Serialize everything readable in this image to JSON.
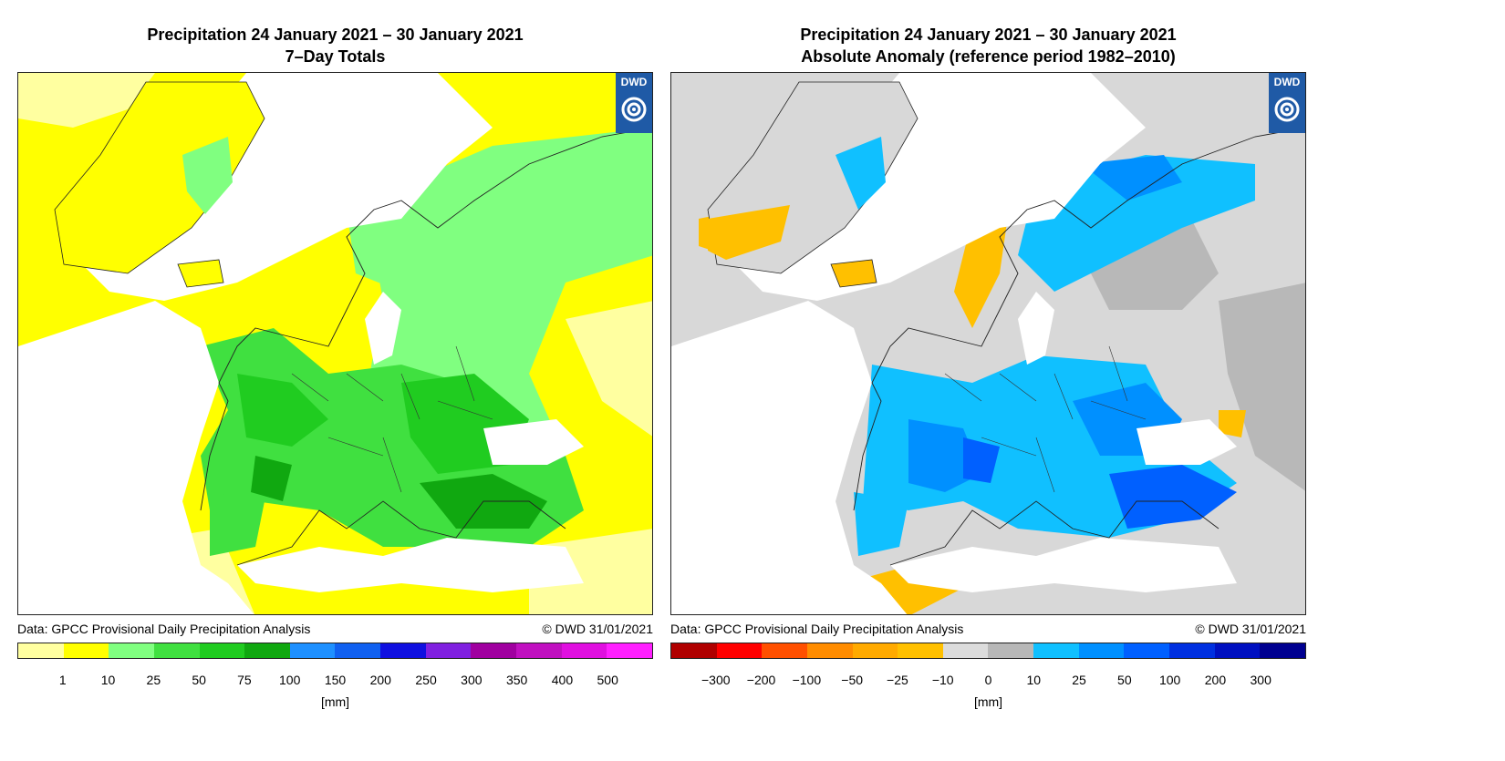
{
  "left": {
    "title_line1": "Precipitation 24 January 2021 – 30 January 2021",
    "title_line2": "7–Day Totals",
    "logo_text": "DWD",
    "logo_icon": "dwd-swirl-icon",
    "source": "Data: GPCC Provisional Daily Precipitation Analysis",
    "copyright": "© DWD 31/01/2021",
    "unit": "[mm]",
    "colors": [
      "#ffffa0",
      "#ffff00",
      "#80ff80",
      "#40e040",
      "#20cc20",
      "#10a810",
      "#1e90ff",
      "#1060f0",
      "#1010e0",
      "#8020e0",
      "#a000a0",
      "#c010c0",
      "#e010e0",
      "#ff20ff"
    ],
    "ticks": [
      "1",
      "10",
      "25",
      "50",
      "75",
      "100",
      "150",
      "200",
      "250",
      "300",
      "350",
      "400",
      "500"
    ],
    "map_palette": {
      "dry": "#ffff00",
      "light": "#ffffa0",
      "moist": "#80ff80",
      "wet": "#40e040",
      "wetter": "#20cc20",
      "wettest": "#10a810"
    }
  },
  "right": {
    "title_line1": "Precipitation 24 January 2021 – 30 January 2021",
    "title_line2": "Absolute Anomaly (reference period 1982–2010)",
    "logo_text": "DWD",
    "logo_icon": "dwd-swirl-icon",
    "source": "Data: GPCC Provisional Daily Precipitation Analysis",
    "copyright": "© DWD 31/01/2021",
    "unit": "[mm]",
    "colors": [
      "#b00000",
      "#ff0000",
      "#ff5000",
      "#ff8c00",
      "#ffaa00",
      "#ffc000",
      "#dcdcdc",
      "#b8b8b8",
      "#10c0ff",
      "#0090ff",
      "#0060ff",
      "#0030e0",
      "#0010c0",
      "#000090"
    ],
    "ticks": [
      "−300",
      "−200",
      "−100",
      "−50",
      "−25",
      "−10",
      "0",
      "10",
      "25",
      "50",
      "100",
      "200",
      "300"
    ],
    "map_palette": {
      "base": "#d8d8d8",
      "neutral": "#b8b8b8",
      "dryish": "#ffc000",
      "blue1": "#10c0ff",
      "blue2": "#0090ff",
      "blue3": "#0060ff"
    }
  }
}
